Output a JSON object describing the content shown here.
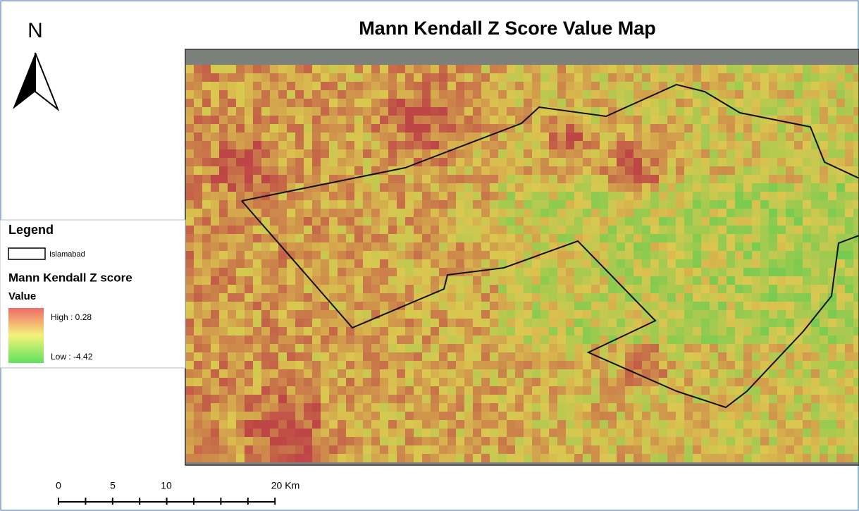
{
  "title": "Mann Kendall Z Score Value Map",
  "north": "N",
  "legend": {
    "title": "Legend",
    "boundary": "Islamabad",
    "layer": "Mann Kendall Z score",
    "field": "Value",
    "high": "High : 0.28",
    "low": "Low : -4.42"
  },
  "scale_bar": {
    "labels": [
      "0",
      "5",
      "10",
      "20 Km"
    ]
  }
}
